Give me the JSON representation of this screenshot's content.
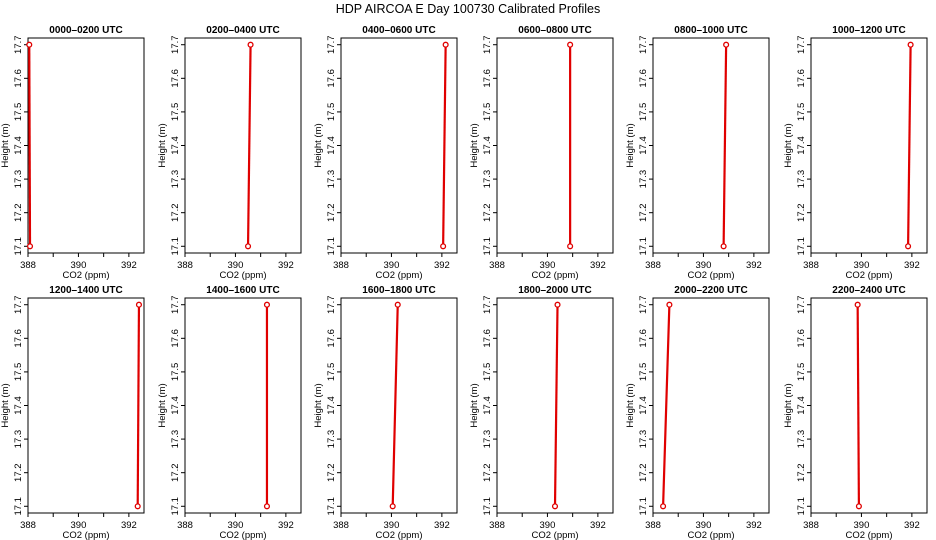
{
  "figure": {
    "title": "HDP AIRCOA E  Day 100730  Calibrated Profiles"
  },
  "chart_data": [
    {
      "type": "line",
      "title": "0000–0200 UTC",
      "xlabel": "CO2 (ppm)",
      "ylabel": "Height (m)",
      "xlim": [
        388,
        392.6
      ],
      "ylim": [
        17.08,
        17.72
      ],
      "x_ticks": [
        388,
        390,
        392
      ],
      "y_ticks": [
        17.1,
        17.2,
        17.3,
        17.4,
        17.5,
        17.6,
        17.7
      ],
      "series": [
        {
          "x": [
            388.08,
            388.05
          ],
          "y": [
            17.1,
            17.7
          ]
        }
      ],
      "line_color": "#e00000",
      "grid": false
    },
    {
      "type": "line",
      "title": "0200–0400 UTC",
      "xlabel": "CO2 (ppm)",
      "ylabel": "Height (m)",
      "xlim": [
        388,
        392.6
      ],
      "ylim": [
        17.08,
        17.72
      ],
      "x_ticks": [
        388,
        390,
        392
      ],
      "y_ticks": [
        17.1,
        17.2,
        17.3,
        17.4,
        17.5,
        17.6,
        17.7
      ],
      "series": [
        {
          "x": [
            390.5,
            390.6
          ],
          "y": [
            17.1,
            17.7
          ]
        }
      ],
      "line_color": "#e00000",
      "grid": false
    },
    {
      "type": "line",
      "title": "0400–0600 UTC",
      "xlabel": "CO2 (ppm)",
      "ylabel": "Height (m)",
      "xlim": [
        388,
        392.6
      ],
      "ylim": [
        17.08,
        17.72
      ],
      "x_ticks": [
        388,
        390,
        392
      ],
      "y_ticks": [
        17.1,
        17.2,
        17.3,
        17.4,
        17.5,
        17.6,
        17.7
      ],
      "series": [
        {
          "x": [
            392.05,
            392.15
          ],
          "y": [
            17.1,
            17.7
          ]
        }
      ],
      "line_color": "#e00000",
      "grid": false
    },
    {
      "type": "line",
      "title": "0600–0800 UTC",
      "xlabel": "CO2 (ppm)",
      "ylabel": "Height (m)",
      "xlim": [
        388,
        392.6
      ],
      "ylim": [
        17.08,
        17.72
      ],
      "x_ticks": [
        388,
        390,
        392
      ],
      "y_ticks": [
        17.1,
        17.2,
        17.3,
        17.4,
        17.5,
        17.6,
        17.7
      ],
      "series": [
        {
          "x": [
            390.9,
            390.9
          ],
          "y": [
            17.1,
            17.7
          ]
        }
      ],
      "line_color": "#e00000",
      "grid": false
    },
    {
      "type": "line",
      "title": "0800–1000 UTC",
      "xlabel": "CO2 (ppm)",
      "ylabel": "Height (m)",
      "xlim": [
        388,
        392.6
      ],
      "ylim": [
        17.08,
        17.72
      ],
      "x_ticks": [
        388,
        390,
        392
      ],
      "y_ticks": [
        17.1,
        17.2,
        17.3,
        17.4,
        17.5,
        17.6,
        17.7
      ],
      "series": [
        {
          "x": [
            390.8,
            390.9
          ],
          "y": [
            17.1,
            17.7
          ]
        }
      ],
      "line_color": "#e00000",
      "grid": false
    },
    {
      "type": "line",
      "title": "1000–1200 UTC",
      "xlabel": "CO2 (ppm)",
      "ylabel": "Height (m)",
      "xlim": [
        388,
        392.6
      ],
      "ylim": [
        17.08,
        17.72
      ],
      "x_ticks": [
        388,
        390,
        392
      ],
      "y_ticks": [
        17.1,
        17.2,
        17.3,
        17.4,
        17.5,
        17.6,
        17.7
      ],
      "series": [
        {
          "x": [
            391.85,
            391.95
          ],
          "y": [
            17.1,
            17.7
          ]
        }
      ],
      "line_color": "#e00000",
      "grid": false
    },
    {
      "type": "line",
      "title": "1200–1400 UTC",
      "xlabel": "CO2 (ppm)",
      "ylabel": "Height (m)",
      "xlim": [
        388,
        392.6
      ],
      "ylim": [
        17.08,
        17.72
      ],
      "x_ticks": [
        388,
        390,
        392
      ],
      "y_ticks": [
        17.1,
        17.2,
        17.3,
        17.4,
        17.5,
        17.6,
        17.7
      ],
      "series": [
        {
          "x": [
            392.35,
            392.4
          ],
          "y": [
            17.1,
            17.7
          ]
        }
      ],
      "line_color": "#e00000",
      "grid": false
    },
    {
      "type": "line",
      "title": "1400–1600 UTC",
      "xlabel": "CO2 (ppm)",
      "ylabel": "Height (m)",
      "xlim": [
        388,
        392.6
      ],
      "ylim": [
        17.08,
        17.72
      ],
      "x_ticks": [
        388,
        390,
        392
      ],
      "y_ticks": [
        17.1,
        17.2,
        17.3,
        17.4,
        17.5,
        17.6,
        17.7
      ],
      "series": [
        {
          "x": [
            391.25,
            391.25
          ],
          "y": [
            17.1,
            17.7
          ]
        }
      ],
      "line_color": "#e00000",
      "grid": false
    },
    {
      "type": "line",
      "title": "1600–1800 UTC",
      "xlabel": "CO2 (ppm)",
      "ylabel": "Height (m)",
      "xlim": [
        388,
        392.6
      ],
      "ylim": [
        17.08,
        17.72
      ],
      "x_ticks": [
        388,
        390,
        392
      ],
      "y_ticks": [
        17.1,
        17.2,
        17.3,
        17.4,
        17.5,
        17.6,
        17.7
      ],
      "series": [
        {
          "x": [
            390.05,
            390.25
          ],
          "y": [
            17.1,
            17.7
          ]
        }
      ],
      "line_color": "#e00000",
      "grid": false
    },
    {
      "type": "line",
      "title": "1800–2000 UTC",
      "xlabel": "CO2 (ppm)",
      "ylabel": "Height (m)",
      "xlim": [
        388,
        392.6
      ],
      "ylim": [
        17.08,
        17.72
      ],
      "x_ticks": [
        388,
        390,
        392
      ],
      "y_ticks": [
        17.1,
        17.2,
        17.3,
        17.4,
        17.5,
        17.6,
        17.7
      ],
      "series": [
        {
          "x": [
            390.3,
            390.4
          ],
          "y": [
            17.1,
            17.7
          ]
        }
      ],
      "line_color": "#e00000",
      "grid": false
    },
    {
      "type": "line",
      "title": "2000–2200 UTC",
      "xlabel": "CO2 (ppm)",
      "ylabel": "Height (m)",
      "xlim": [
        388,
        392.6
      ],
      "ylim": [
        17.08,
        17.72
      ],
      "x_ticks": [
        388,
        390,
        392
      ],
      "y_ticks": [
        17.1,
        17.2,
        17.3,
        17.4,
        17.5,
        17.6,
        17.7
      ],
      "series": [
        {
          "x": [
            388.4,
            388.65
          ],
          "y": [
            17.1,
            17.7
          ]
        }
      ],
      "line_color": "#e00000",
      "grid": false
    },
    {
      "type": "line",
      "title": "2200–2400 UTC",
      "xlabel": "CO2 (ppm)",
      "ylabel": "Height (m)",
      "xlim": [
        388,
        392.6
      ],
      "ylim": [
        17.08,
        17.72
      ],
      "x_ticks": [
        388,
        390,
        392
      ],
      "y_ticks": [
        17.1,
        17.2,
        17.3,
        17.4,
        17.5,
        17.6,
        17.7
      ],
      "series": [
        {
          "x": [
            389.9,
            389.85
          ],
          "y": [
            17.1,
            17.7
          ]
        }
      ],
      "line_color": "#e00000",
      "grid": false
    }
  ]
}
